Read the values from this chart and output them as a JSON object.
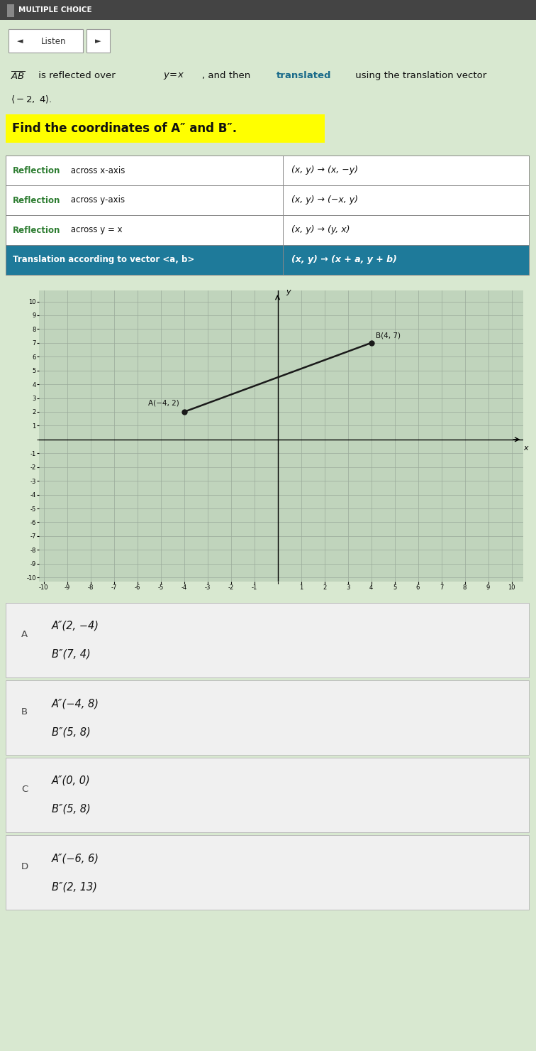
{
  "bg_color": "#d8e8d0",
  "header_bg": "#555555",
  "header_text": "MULTIPLE CHOICE",
  "table_rows": [
    {
      "left": "Reflection across x-axis",
      "right": "(x, y) → (x, −y)"
    },
    {
      "left": "Reflection across y-axis",
      "right": "(x, y) → (−x, y)"
    },
    {
      "left": "Reflection across y = x",
      "right": "(x, y) → (y, x)"
    },
    {
      "left": "Translation according to vector <a, b>",
      "right": "(x, y) → (x + a, y + b)"
    }
  ],
  "highlight_color": "#ffff00",
  "highlight_text": "Find the coordinates of A″ and B″.",
  "graph_A": [
    -4,
    2
  ],
  "graph_B": [
    4,
    7
  ],
  "graph_A_label": "A(−4, 2)",
  "graph_B_label": "B(4, 7)",
  "graph_xlim": [
    -10,
    10
  ],
  "graph_ylim": [
    -10,
    10
  ],
  "graph_bg": "#c0d4bc",
  "point_color": "#1a1a1a",
  "line_color": "#1a1a1a",
  "choices": [
    {
      "letter": "A",
      "lines": [
        "A″(2, −4)",
        "B″(7, 4)"
      ]
    },
    {
      "letter": "B",
      "lines": [
        "A″(−4, 8)",
        "B″(5, 8)"
      ]
    },
    {
      "letter": "C",
      "lines": [
        "A″(0, 0)",
        "B″(5, 8)"
      ]
    },
    {
      "letter": "D",
      "lines": [
        "A″(−6, 6)",
        "B″(2, 13)"
      ]
    }
  ]
}
